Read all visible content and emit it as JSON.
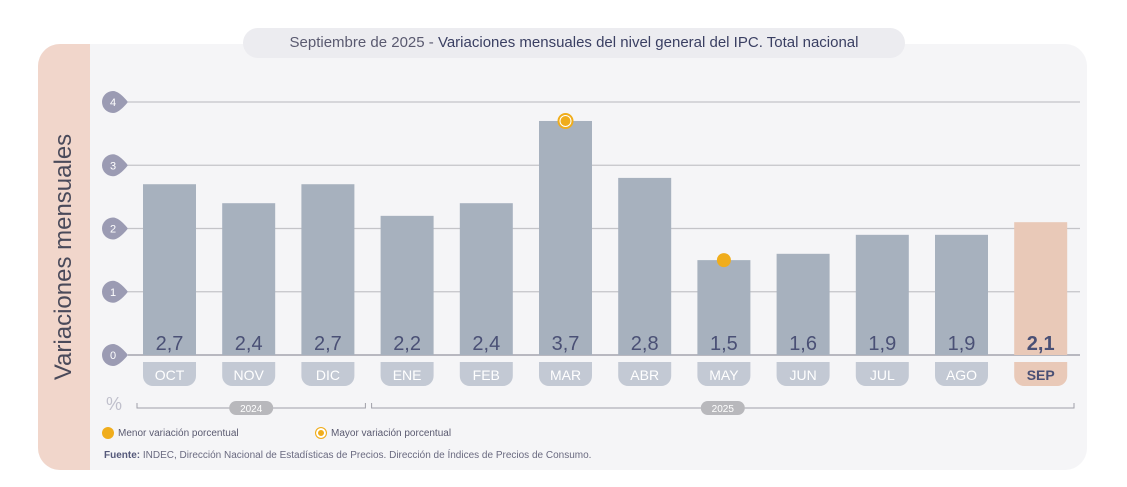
{
  "title": {
    "prefix": "Septiembre de 2025 - ",
    "main": "Variaciones mensuales del nivel general del IPC. Total nacional"
  },
  "chart_data": {
    "type": "bar",
    "title": "Septiembre de 2025 - Variaciones mensuales del nivel general del IPC. Total nacional",
    "ylabel": "Variaciones mensuales",
    "yunit": "%",
    "ylim": [
      0,
      4
    ],
    "yticks": [
      "0",
      "1",
      "2",
      "3",
      "4"
    ],
    "categories": [
      "OCT",
      "NOV",
      "DIC",
      "ENE",
      "FEB",
      "MAR",
      "ABR",
      "MAY",
      "JUN",
      "JUL",
      "AGO",
      "SEP"
    ],
    "values": [
      2.7,
      2.4,
      2.7,
      2.2,
      2.4,
      3.7,
      2.8,
      1.5,
      1.6,
      1.9,
      1.9,
      2.1
    ],
    "labels": [
      "2,7",
      "2,4",
      "2,7",
      "2,2",
      "2,4",
      "3,7",
      "2,8",
      "1,5",
      "1,6",
      "1,9",
      "1,9",
      "2,1"
    ],
    "year_groups": [
      {
        "label": "2024",
        "from": 0,
        "to": 2
      },
      {
        "label": "2025",
        "from": 3,
        "to": 11
      }
    ],
    "highlight_index": 11,
    "min_index": 7,
    "max_index": 5,
    "colors": {
      "bar": "#a7b1be",
      "highlight": "#e9c9b8",
      "marker": "#f0ad1c",
      "tick": "#9b9bb3"
    }
  },
  "legend": {
    "min": "Menor variación porcentual",
    "max": "Mayor variación porcentual"
  },
  "source": {
    "label": "Fuente:",
    "text": " INDEC, Dirección Nacional de Estadísticas de Precios. Dirección de Índices de Precios de Consumo."
  }
}
